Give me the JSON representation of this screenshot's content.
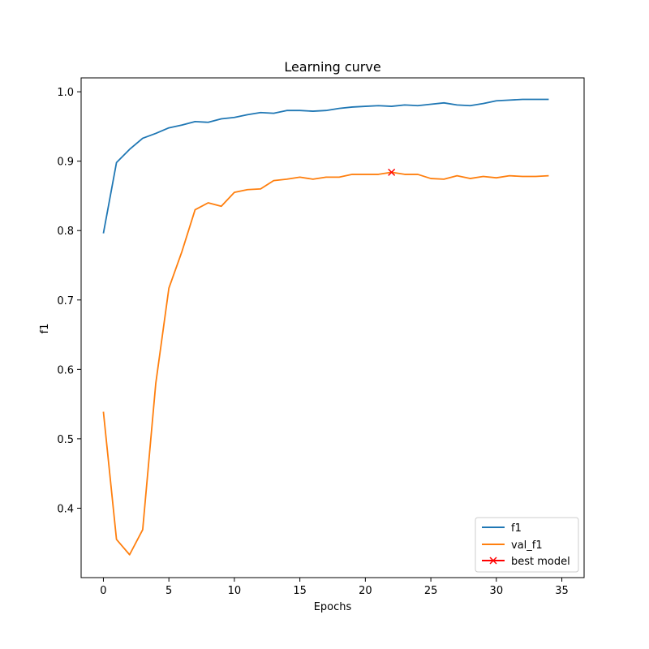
{
  "chart_data": {
    "type": "line",
    "title": "Learning curve",
    "xlabel": "Epochs",
    "ylabel": "f1",
    "xlim": [
      -1.7,
      36.7
    ],
    "ylim": [
      0.3,
      1.02
    ],
    "xticks": [
      0,
      5,
      10,
      15,
      20,
      25,
      30,
      35
    ],
    "yticks": [
      0.4,
      0.5,
      0.6,
      0.7,
      0.8,
      0.9,
      1.0
    ],
    "grid": false,
    "legend_position": "bottom-right",
    "x": [
      0,
      1,
      2,
      3,
      4,
      5,
      6,
      7,
      8,
      9,
      10,
      11,
      12,
      13,
      14,
      15,
      16,
      17,
      18,
      19,
      20,
      21,
      22,
      23,
      24,
      25,
      26,
      27,
      28,
      29,
      30,
      31,
      32,
      33,
      34
    ],
    "series": [
      {
        "name": "f1",
        "color": "#1f77b4",
        "values": [
          0.796,
          0.898,
          0.917,
          0.933,
          0.94,
          0.948,
          0.952,
          0.957,
          0.956,
          0.961,
          0.963,
          0.967,
          0.97,
          0.969,
          0.973,
          0.973,
          0.972,
          0.973,
          0.976,
          0.978,
          0.979,
          0.98,
          0.979,
          0.981,
          0.98,
          0.982,
          0.984,
          0.981,
          0.98,
          0.983,
          0.987,
          0.988,
          0.989,
          0.989,
          0.989
        ]
      },
      {
        "name": "val_f1",
        "color": "#ff7f0e",
        "values": [
          0.539,
          0.355,
          0.333,
          0.369,
          0.58,
          0.717,
          0.77,
          0.83,
          0.84,
          0.835,
          0.855,
          0.859,
          0.86,
          0.872,
          0.874,
          0.877,
          0.874,
          0.877,
          0.877,
          0.881,
          0.881,
          0.881,
          0.884,
          0.881,
          0.881,
          0.875,
          0.874,
          0.879,
          0.875,
          0.878,
          0.876,
          0.879,
          0.878,
          0.878,
          0.879
        ]
      }
    ],
    "best_model": {
      "name": "best model",
      "color": "#ff0000",
      "x": 22,
      "y": 0.884
    }
  }
}
